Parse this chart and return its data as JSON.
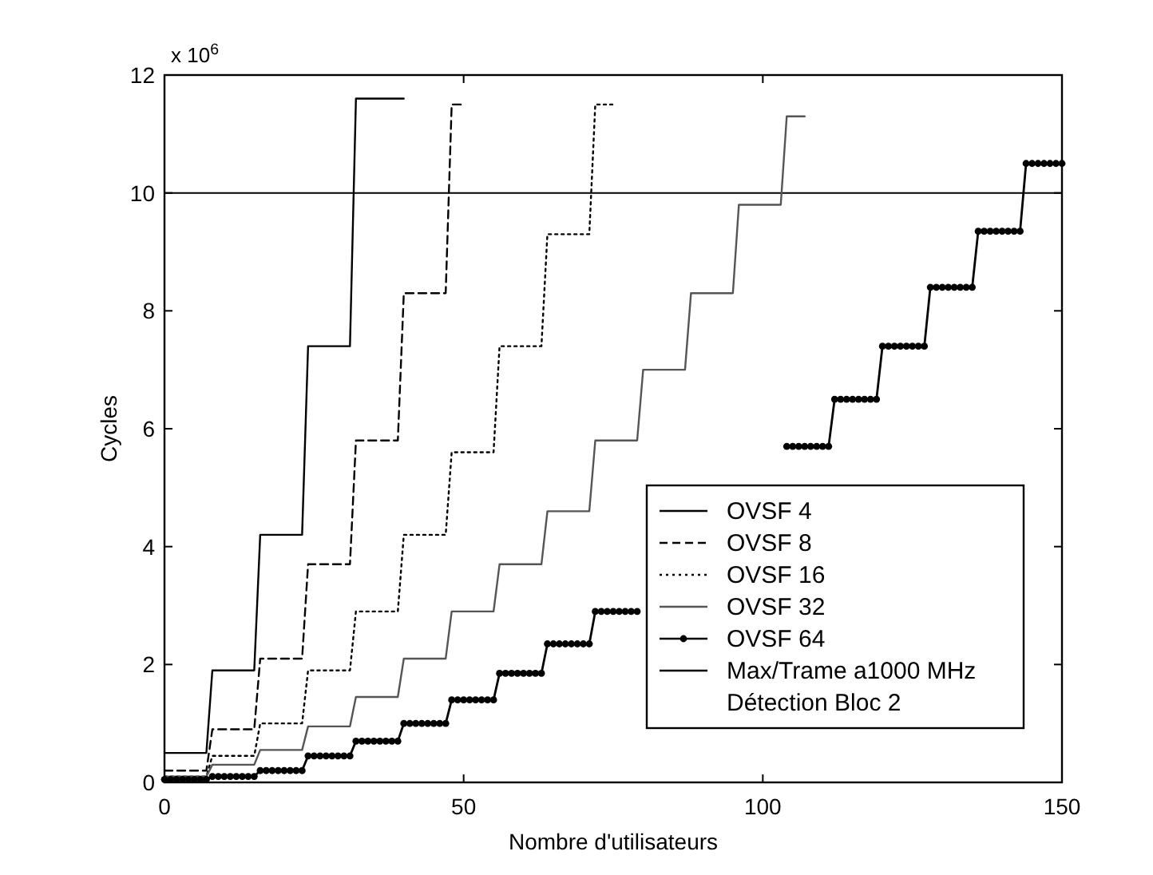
{
  "chart_data": {
    "type": "line",
    "xlabel": "Nombre d'utilisateurs",
    "ylabel": "Cycles",
    "annotations": [
      "x 10$^{6}$"
    ],
    "xlim": [
      0,
      150
    ],
    "xticks": [
      0,
      50,
      100,
      150
    ],
    "ylim": [
      0,
      12
    ],
    "yticks": [
      0,
      2,
      4,
      6,
      8,
      10,
      12
    ],
    "grid": false,
    "legend": "bottom right",
    "x": [
      0,
      1,
      2,
      3,
      4,
      5,
      6,
      7,
      8,
      9,
      10,
      11,
      12,
      13,
      14,
      15,
      16,
      17,
      18,
      19,
      20,
      21,
      22,
      23,
      24,
      25,
      26,
      27,
      28,
      29,
      30,
      31,
      32,
      33,
      34,
      35,
      36,
      37,
      38,
      39,
      40,
      41,
      42,
      43,
      44,
      45,
      46,
      47,
      48,
      49,
      50,
      51,
      52,
      53,
      54,
      55,
      56,
      57,
      58,
      59,
      60,
      61,
      62,
      63,
      64,
      65,
      66,
      67,
      68,
      69,
      70,
      71,
      72,
      73,
      74,
      75,
      76,
      77,
      78,
      79,
      80,
      81,
      82,
      83,
      84,
      85,
      86,
      87,
      88,
      89,
      90,
      91,
      92,
      93,
      94,
      95,
      96,
      97,
      98,
      99,
      100,
      101,
      102,
      103,
      104,
      105,
      106,
      107,
      108,
      109,
      110,
      111,
      112,
      113,
      114,
      115,
      116,
      117,
      118,
      119,
      120,
      121,
      122,
      123,
      124,
      125,
      126,
      127,
      128,
      129,
      130,
      131,
      132,
      133,
      134,
      135,
      136,
      137,
      138,
      139,
      140,
      141,
      142,
      143,
      144,
      145,
      146,
      147,
      148,
      149,
      150
    ],
    "series": [
      {
        "name": "OVSF 4",
        "color": "#000000",
        "line_style": "solid",
        "marker": "none",
        "x": [
          0,
          7,
          8,
          15,
          16,
          23,
          24,
          31,
          32,
          40
        ],
        "values": [
          0.5,
          0.5,
          1.9,
          1.9,
          4.2,
          4.2,
          7.4,
          7.4,
          11.6,
          11.6
        ]
      },
      {
        "name": "OVSF 8",
        "color": "#000000",
        "line_style": "dashed",
        "marker": "none",
        "x": [
          0,
          7,
          8,
          15,
          16,
          23,
          24,
          31,
          32,
          39,
          40,
          47,
          48,
          50
        ],
        "values": [
          0.2,
          0.2,
          0.9,
          0.9,
          2.1,
          2.1,
          3.7,
          3.7,
          5.8,
          5.8,
          8.3,
          8.3,
          11.5,
          11.5
        ]
      },
      {
        "name": "OVSF 16",
        "color": "#000000",
        "line_style": "dotted",
        "marker": "none",
        "x": [
          0,
          7,
          8,
          15,
          16,
          23,
          24,
          31,
          32,
          39,
          40,
          47,
          48,
          55,
          56,
          63,
          64,
          71,
          72,
          75
        ],
        "values": [
          0.1,
          0.1,
          0.45,
          0.45,
          1.0,
          1.0,
          1.9,
          1.9,
          2.9,
          2.9,
          4.2,
          4.2,
          5.6,
          5.6,
          7.4,
          7.4,
          9.3,
          9.3,
          11.5,
          11.5
        ]
      },
      {
        "name": "OVSF 32",
        "color": "#555555",
        "line_style": "solid",
        "marker": "none",
        "x": [
          0,
          7,
          8,
          15,
          16,
          23,
          24,
          31,
          32,
          39,
          40,
          47,
          48,
          55,
          56,
          63,
          64,
          71,
          72,
          79,
          80,
          87,
          88,
          95,
          96,
          103,
          104,
          107
        ],
        "values": [
          0.1,
          0.1,
          0.3,
          0.3,
          0.55,
          0.55,
          0.95,
          0.95,
          1.45,
          1.45,
          2.1,
          2.1,
          2.9,
          2.9,
          3.7,
          3.7,
          4.6,
          4.6,
          5.8,
          5.8,
          7.0,
          7.0,
          8.3,
          8.3,
          9.8,
          9.8,
          11.3,
          11.3
        ]
      },
      {
        "name": "OVSF 64",
        "color": "#000000",
        "line_style": "solid",
        "marker": "circle",
        "values": [
          0.05,
          0.05,
          0.05,
          0.05,
          0.05,
          0.05,
          0.05,
          0.05,
          0.1,
          0.1,
          0.1,
          0.1,
          0.1,
          0.1,
          0.1,
          0.1,
          0.2,
          0.2,
          0.2,
          0.2,
          0.2,
          0.2,
          0.2,
          0.2,
          0.45,
          0.45,
          0.45,
          0.45,
          0.45,
          0.45,
          0.45,
          0.45,
          0.7,
          0.7,
          0.7,
          0.7,
          0.7,
          0.7,
          0.7,
          0.7,
          1.0,
          1.0,
          1.0,
          1.0,
          1.0,
          1.0,
          1.0,
          1.0,
          1.4,
          1.4,
          1.4,
          1.4,
          1.4,
          1.4,
          1.4,
          1.4,
          1.85,
          1.85,
          1.85,
          1.85,
          1.85,
          1.85,
          1.85,
          1.85,
          2.35,
          2.35,
          2.35,
          2.35,
          2.35,
          2.35,
          2.35,
          2.35,
          2.9,
          2.9,
          2.9,
          2.9,
          2.9,
          2.9,
          2.9,
          2.9,
          null,
          null,
          null,
          null,
          null,
          null,
          null,
          null,
          null,
          null,
          null,
          null,
          null,
          null,
          null,
          null,
          null,
          null,
          null,
          null,
          null,
          null,
          null,
          null,
          5.7,
          5.7,
          5.7,
          5.7,
          5.7,
          5.7,
          5.7,
          5.7,
          6.5,
          6.5,
          6.5,
          6.5,
          6.5,
          6.5,
          6.5,
          6.5,
          7.4,
          7.4,
          7.4,
          7.4,
          7.4,
          7.4,
          7.4,
          7.4,
          8.4,
          8.4,
          8.4,
          8.4,
          8.4,
          8.4,
          8.4,
          8.4,
          9.35,
          9.35,
          9.35,
          9.35,
          9.35,
          9.35,
          9.35,
          9.35,
          10.5,
          10.5,
          10.5,
          10.5,
          10.5,
          10.5,
          10.5
        ]
      }
    ],
    "ref_lines": [
      {
        "axis": "y",
        "value": 10,
        "label": "Max/Trame a1000 MHz Détection Bloc 2",
        "color": "#000000",
        "line_style": "solid"
      }
    ]
  }
}
